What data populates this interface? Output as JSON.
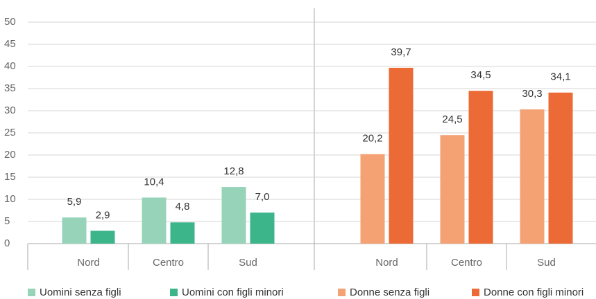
{
  "chart_data": {
    "type": "bar",
    "categories": [
      "Nord",
      "Centro",
      "Sud",
      "Nord",
      "Centro",
      "Sud"
    ],
    "series": [
      {
        "name": "Uomini senza figli",
        "color": "#97d3b9",
        "values": [
          5.9,
          10.4,
          12.8,
          null,
          null,
          null
        ],
        "value_labels": [
          "5,9",
          "10,4",
          "12,8",
          null,
          null,
          null
        ]
      },
      {
        "name": "Uomini con figli minori",
        "color": "#3db58b",
        "values": [
          2.9,
          4.8,
          7.0,
          null,
          null,
          null
        ],
        "value_labels": [
          "2,9",
          "4,8",
          "7,0",
          null,
          null,
          null
        ]
      },
      {
        "name": "Donne senza figli",
        "color": "#f4a274",
        "values": [
          null,
          null,
          null,
          20.2,
          24.5,
          30.3
        ],
        "value_labels": [
          null,
          null,
          null,
          "20,2",
          "24,5",
          "30,3"
        ]
      },
      {
        "name": "Donne con figli minori",
        "color": "#ec6a36",
        "values": [
          null,
          null,
          null,
          39.7,
          34.5,
          34.1
        ],
        "value_labels": [
          null,
          null,
          null,
          "39,7",
          "34,5",
          "34,1"
        ]
      }
    ],
    "ylim": [
      0,
      50
    ],
    "yticks": [
      0,
      5,
      10,
      15,
      20,
      25,
      30,
      35,
      40,
      45,
      50
    ],
    "grid": true
  }
}
